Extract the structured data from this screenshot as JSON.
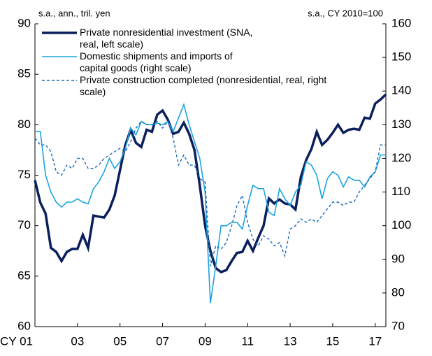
{
  "chart_data": {
    "type": "line",
    "left_note": "s.a., ann., tril. yen",
    "right_note": "s.a., CY 2010=100",
    "categories": [
      "CY 01",
      null,
      null,
      null,
      null,
      null,
      null,
      null,
      "03",
      null,
      null,
      null,
      null,
      null,
      null,
      null,
      "05",
      null,
      null,
      null,
      null,
      null,
      null,
      null,
      "07",
      null,
      null,
      null,
      null,
      null,
      null,
      null,
      "09",
      null,
      null,
      null,
      null,
      null,
      null,
      null,
      "11",
      null,
      null,
      null,
      null,
      null,
      null,
      null,
      "13",
      null,
      null,
      null,
      null,
      null,
      null,
      null,
      "15",
      null,
      null,
      null,
      null,
      null,
      null,
      null,
      "17",
      null,
      null
    ],
    "ylim": [
      60,
      90
    ],
    "yticks": [
      60,
      65,
      70,
      75,
      80,
      85,
      90
    ],
    "y2lim": [
      70,
      160
    ],
    "y2ticks": [
      70,
      80,
      90,
      100,
      110,
      120,
      130,
      140,
      150,
      160
    ],
    "series": [
      {
        "name": "Private nonresidential investment (SNA, real, left scale)",
        "color": "#0a1f5c",
        "width": 3.5,
        "dash": false,
        "axis": "y",
        "values": [
          74.5,
          72.3,
          71.2,
          67.8,
          67.4,
          66.5,
          67.4,
          67.7,
          67.7,
          69.1,
          67.8,
          71.0,
          70.9,
          70.8,
          71.6,
          73.0,
          75.5,
          78.0,
          79.5,
          78.2,
          77.8,
          79.5,
          79.3,
          81.0,
          81.4,
          80.5,
          79.1,
          79.3,
          80.2,
          79.1,
          77.5,
          74.0,
          70.0,
          67.5,
          65.8,
          65.4,
          65.6,
          66.5,
          67.3,
          67.4,
          68.5,
          67.5,
          68.8,
          70.0,
          72.7,
          72.2,
          72.6,
          72.2,
          72.1,
          71.6,
          74.8,
          76.5,
          77.6,
          79.3,
          78.0,
          78.5,
          79.2,
          80.0,
          79.2,
          79.5,
          79.6,
          79.5,
          80.7,
          80.6,
          82.1,
          82.5,
          83.0
        ]
      },
      {
        "name": "Domestic shipments and imports of capital goods (right scale)",
        "color": "#1ba3e0",
        "width": 1.6,
        "dash": false,
        "axis": "y2",
        "values": [
          128,
          128,
          115,
          110,
          107,
          105.5,
          107,
          107,
          108,
          107,
          106.5,
          111,
          113,
          116,
          120,
          117,
          119,
          123,
          129,
          127,
          131,
          130,
          130,
          130.5,
          130,
          131,
          128,
          132,
          136,
          130,
          125,
          120,
          110,
          77,
          88,
          100,
          100,
          101,
          101,
          99,
          106,
          112,
          111,
          111,
          104,
          103,
          111,
          108,
          106,
          110,
          112,
          119,
          118,
          115,
          108,
          114,
          116,
          115,
          111.5,
          114.5,
          113.5,
          113.5,
          111.5,
          114.5,
          116,
          121,
          121
        ]
      },
      {
        "name": "Private construction completed (nonresidential, real, right scale)",
        "color": "#1a6bb8",
        "width": 1.4,
        "dash": true,
        "axis": "y2",
        "values": [
          126,
          124,
          124,
          122,
          116,
          115,
          118,
          117,
          120,
          120,
          117,
          117,
          118,
          120,
          121,
          122,
          123,
          122,
          125,
          129,
          131,
          130,
          130,
          131,
          129,
          131,
          126,
          118,
          121,
          118,
          118,
          114,
          113,
          88,
          94,
          93,
          95,
          100,
          106,
          109,
          101,
          96,
          94,
          97,
          96,
          94,
          95,
          91,
          99,
          100,
          102,
          101,
          102,
          101,
          103,
          105,
          107,
          107,
          106,
          107,
          107,
          110,
          112,
          114,
          116,
          124,
          124
        ]
      }
    ]
  }
}
